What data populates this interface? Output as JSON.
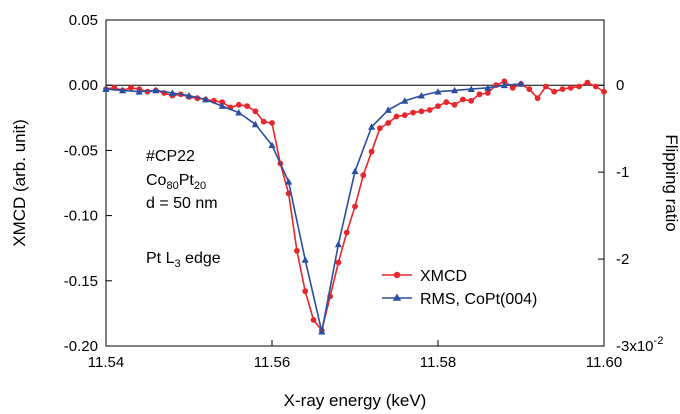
{
  "chart_data": {
    "type": "line",
    "xlabel": "X-ray energy (keV)",
    "ylabel": "XMCD (arb. unit)",
    "y2label": "Flipping ratio",
    "xlim": [
      11.54,
      11.6
    ],
    "ylim": [
      -0.2,
      0.05
    ],
    "y2lim": [
      -3,
      0.75
    ],
    "x_ticks": [
      11.54,
      11.56,
      11.58,
      11.6
    ],
    "x_tick_labels": [
      "11.54",
      "11.56",
      "11.58",
      "11.60"
    ],
    "y_ticks": [
      0.05,
      0.0,
      -0.05,
      -0.1,
      -0.15,
      -0.2
    ],
    "y_tick_labels": [
      "0.05",
      "0.00",
      "-0.05",
      "-0.10",
      "-0.15",
      "-0.20"
    ],
    "y2_ticks": [
      0,
      -1,
      -2,
      -3
    ],
    "y2_tick_labels": [
      "0",
      "-1",
      "-2",
      "-3x10"
    ],
    "y2_exponent": "-2",
    "zero_line": true,
    "legend_position": "bottom-right",
    "annotations": {
      "sample": "#CP22",
      "composition_prefix": "Co",
      "composition_sub1": "80",
      "composition_mid": "Pt",
      "composition_sub2": "20",
      "thickness": "d = 50 nm",
      "edge_prefix": "Pt L",
      "edge_sub": "3",
      "edge_suffix": " edge"
    },
    "series": [
      {
        "name": "XMCD",
        "color": "#e8262b",
        "marker": "circle",
        "x": [
          11.54,
          11.541,
          11.542,
          11.543,
          11.544,
          11.545,
          11.546,
          11.547,
          11.548,
          11.549,
          11.55,
          11.551,
          11.552,
          11.553,
          11.554,
          11.555,
          11.556,
          11.557,
          11.558,
          11.559,
          11.56,
          11.561,
          11.562,
          11.563,
          11.564,
          11.565,
          11.566,
          11.567,
          11.568,
          11.569,
          11.57,
          11.571,
          11.572,
          11.573,
          11.574,
          11.575,
          11.576,
          11.577,
          11.578,
          11.579,
          11.58,
          11.581,
          11.582,
          11.583,
          11.584,
          11.585,
          11.586,
          11.587,
          11.588,
          11.589,
          11.59,
          11.591,
          11.592,
          11.593,
          11.594,
          11.595,
          11.596,
          11.597,
          11.598,
          11.599,
          11.6
        ],
        "y": [
          -0.003,
          -0.002,
          -0.004,
          -0.002,
          -0.003,
          -0.005,
          -0.004,
          -0.006,
          -0.008,
          -0.007,
          -0.009,
          -0.01,
          -0.011,
          -0.012,
          -0.013,
          -0.017,
          -0.015,
          -0.016,
          -0.02,
          -0.028,
          -0.029,
          -0.06,
          -0.083,
          -0.127,
          -0.158,
          -0.18,
          -0.188,
          -0.162,
          -0.136,
          -0.113,
          -0.093,
          -0.069,
          -0.051,
          -0.033,
          -0.029,
          -0.024,
          -0.023,
          -0.021,
          -0.02,
          -0.019,
          -0.016,
          -0.013,
          -0.015,
          -0.011,
          -0.012,
          -0.007,
          -0.006,
          0.0,
          0.003,
          -0.002,
          0.001,
          -0.003,
          -0.01,
          -0.001,
          -0.005,
          -0.003,
          -0.002,
          -0.001,
          0.002,
          -0.001,
          -0.005
        ]
      },
      {
        "name": "RMS, CoPt(004)",
        "color": "#2b4fa0",
        "marker": "triangle",
        "x": [
          11.54,
          11.542,
          11.544,
          11.546,
          11.548,
          11.55,
          11.552,
          11.554,
          11.556,
          11.558,
          11.56,
          11.562,
          11.564,
          11.566,
          11.568,
          11.57,
          11.572,
          11.574,
          11.576,
          11.578,
          11.58,
          11.582,
          11.584,
          11.586,
          11.588,
          11.59
        ],
        "y": [
          -0.003,
          -0.004,
          -0.005,
          -0.004,
          -0.006,
          -0.008,
          -0.011,
          -0.016,
          -0.021,
          -0.03,
          -0.046,
          -0.074,
          -0.134,
          -0.189,
          -0.122,
          -0.066,
          -0.032,
          -0.019,
          -0.012,
          -0.008,
          -0.005,
          -0.004,
          -0.003,
          -0.002,
          0.0,
          0.001
        ]
      }
    ]
  }
}
